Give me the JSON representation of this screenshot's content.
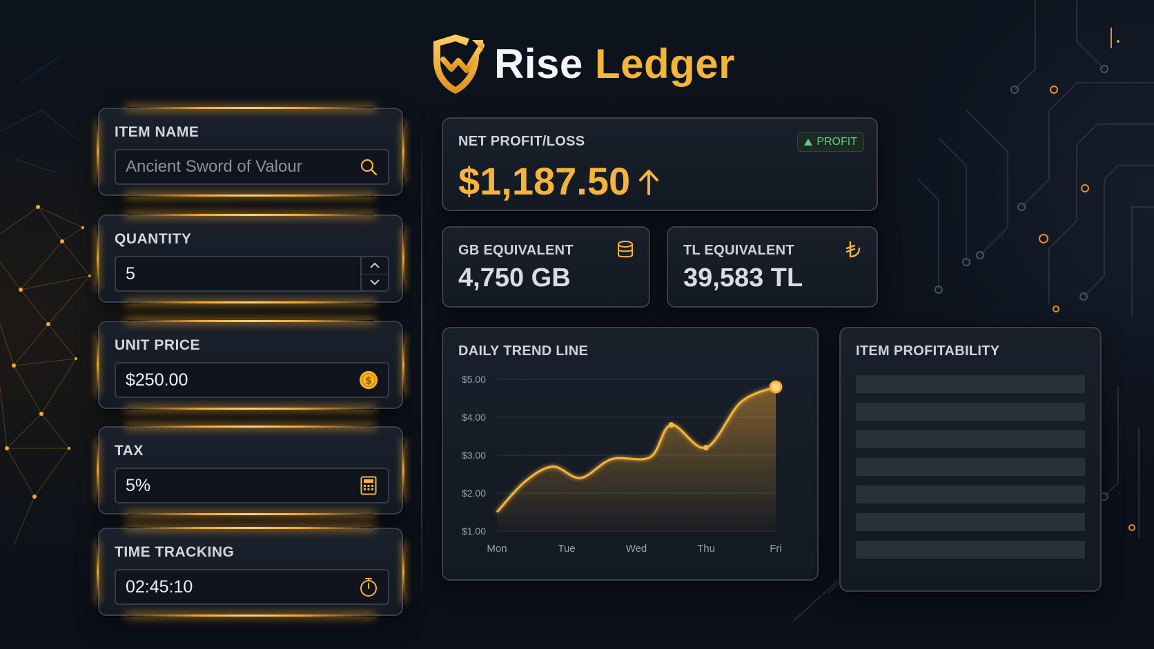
{
  "brand": {
    "word1": "Rise",
    "word2": "Ledger"
  },
  "inputs": {
    "item_name": {
      "label": "ITEM NAME",
      "placeholder": "Ancient Sword of Valour",
      "icon": "search-icon"
    },
    "quantity": {
      "label": "QUANTITY",
      "value": "5",
      "icon": "stepper"
    },
    "unit_price": {
      "label": "UNIT PRICE",
      "value": "$250.00",
      "icon": "coin-icon"
    },
    "tax": {
      "label": "TAX",
      "value": "5%",
      "icon": "calculator-icon"
    },
    "time_tracking": {
      "label": "TIME TRACKING",
      "value": "02:45:10",
      "icon": "stopwatch-icon"
    }
  },
  "net_profit": {
    "label": "NET PROFIT/LOSS",
    "value": "$1,187.50",
    "badge": "PROFIT",
    "trend": "up"
  },
  "gb_equivalent": {
    "label": "GB EQUIVALENT",
    "value": "4,750 GB",
    "icon": "database-icon"
  },
  "tl_equivalent": {
    "label": "TL EQUIVALENT",
    "value": "39,583 TL",
    "icon": "lira-icon"
  },
  "item_profitability": {
    "label": "ITEM PROFITABILITY",
    "rows": 7
  },
  "colors": {
    "accent": "#f5b53a",
    "profit_green": "#5fd07a",
    "background": "#0d131d",
    "card": "#1a202b"
  },
  "chart_data": {
    "type": "area",
    "title": "DAILY TREND LINE",
    "categories": [
      "Mon",
      "Tue",
      "Wed",
      "Thu",
      "Fri"
    ],
    "yticks": [
      "$5.00",
      "$4.00",
      "$3.00",
      "$2.00",
      "$1.00"
    ],
    "ylim": [
      1,
      5
    ],
    "x": [
      0,
      0.4,
      0.8,
      1.2,
      1.65,
      2.2,
      2.5,
      3.0,
      3.5,
      4.0
    ],
    "values": [
      1.5,
      2.3,
      2.7,
      2.4,
      2.9,
      2.95,
      3.8,
      3.2,
      4.4,
      4.8
    ],
    "grid": true
  }
}
